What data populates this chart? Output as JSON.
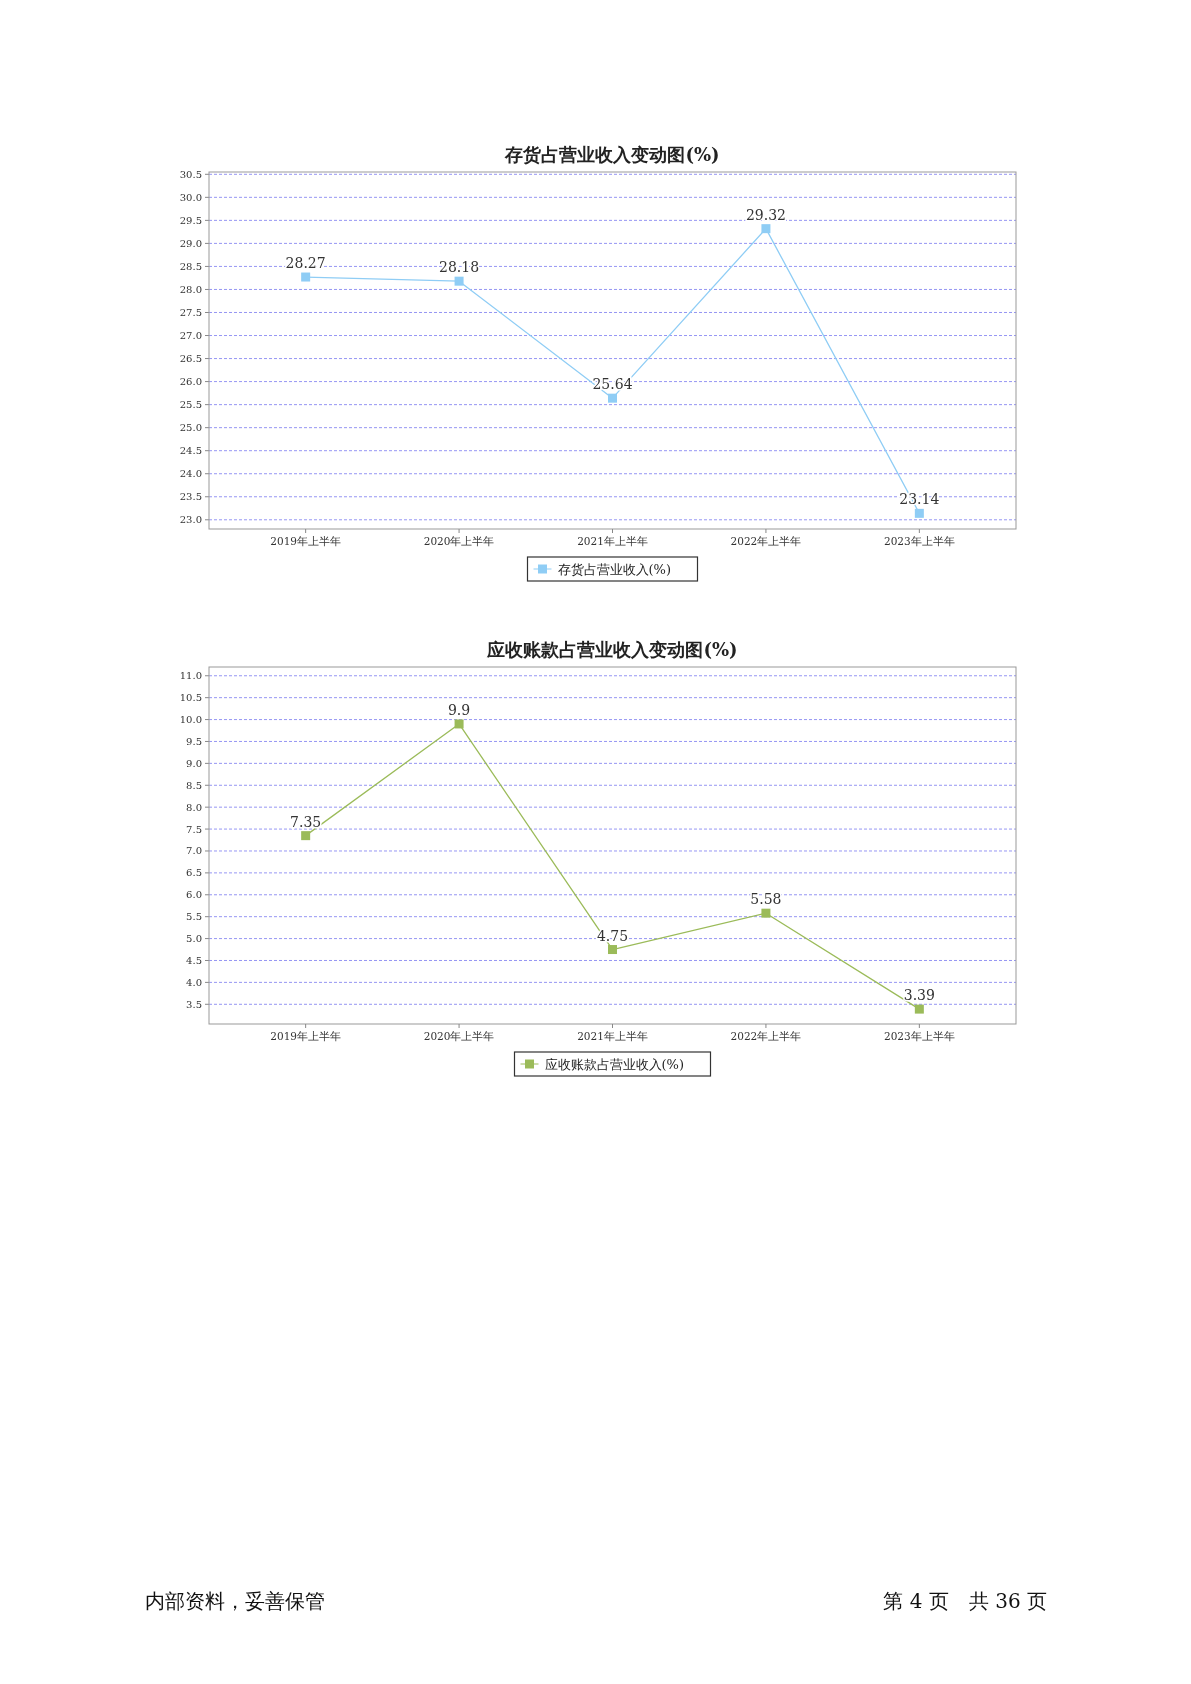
{
  "chart_data": [
    {
      "type": "line",
      "title": "存货占营业收入变动图(%)",
      "categories": [
        "2019年上半年",
        "2020年上半年",
        "2021年上半年",
        "2022年上半年",
        "2023年上半年"
      ],
      "series": [
        {
          "name": "存货占营业收入(%)",
          "color": "#8fcdf5",
          "values": [
            28.27,
            28.18,
            25.64,
            29.32,
            23.14
          ]
        }
      ],
      "ylim": [
        22.8,
        30.55
      ],
      "yticks": [
        {
          "value": 23,
          "label": "23.0"
        },
        23.5,
        {
          "value": 24,
          "label": "24.0"
        },
        24.5,
        {
          "value": 25,
          "label": "25.0"
        },
        25.5,
        {
          "value": 26,
          "label": "26.0"
        },
        26.5,
        {
          "value": 27,
          "label": "27.0"
        },
        27.5,
        {
          "value": 28,
          "label": "28.0"
        },
        28.5,
        {
          "value": 29,
          "label": "29.0"
        },
        29.5,
        {
          "value": 30,
          "label": "30.0"
        },
        30.5
      ],
      "grid": "y",
      "legend": "bottom",
      "marker": "square",
      "data_labels": true
    },
    {
      "type": "line",
      "title": "应收账款占营业收入变动图(%)",
      "categories": [
        "2019年上半年",
        "2020年上半年",
        "2021年上半年",
        "2022年上半年",
        "2023年上半年"
      ],
      "series": [
        {
          "name": "应收账款占营业收入(%)",
          "color": "#9bbb59",
          "values": [
            7.35,
            9.9,
            4.75,
            5.58,
            3.39
          ]
        }
      ],
      "ylim": [
        3.05,
        11.2
      ],
      "yticks": [
        3.5,
        {
          "value": 4,
          "label": "4.0"
        },
        4.5,
        {
          "value": 5,
          "label": "5.0"
        },
        5.5,
        {
          "value": 6,
          "label": "6.0"
        },
        6.5,
        {
          "value": 7,
          "label": "7.0"
        },
        7.5,
        {
          "value": 8,
          "label": "8.0"
        },
        8.5,
        {
          "value": 9,
          "label": "9.0"
        },
        9.5,
        {
          "value": 10,
          "label": "10.0"
        },
        10.5,
        {
          "value": 11,
          "label": "11.0"
        }
      ],
      "grid": "y",
      "legend": "bottom",
      "marker": "square",
      "data_labels": true,
      "annotations": [
        "内部资料，妥善保管",
        "第 4 页　共 36 页"
      ]
    }
  ]
}
